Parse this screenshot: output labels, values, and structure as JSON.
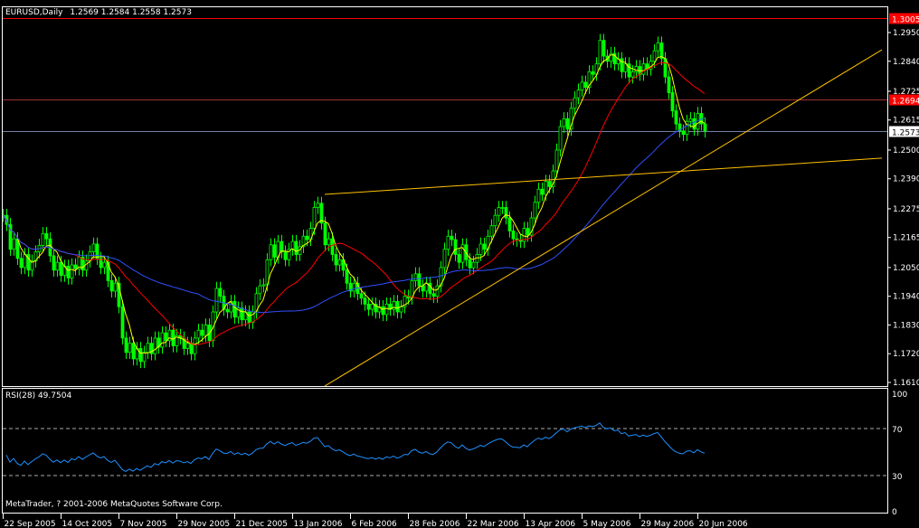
{
  "header": {
    "symbol_timeframe": "EURUSD,Daily",
    "ohlc": "1.2569 1.2584 1.2558 1.2573"
  },
  "copyright": "MetaTrader, ? 2001-2006 MetaQuotes Software Corp.",
  "indicator_label": "RSI(28) 49.7504",
  "colors": {
    "background": "#000000",
    "candles": "#00ff00",
    "ma_fast": "#ffff00",
    "ma_mid": "#ff0000",
    "ma_slow": "#3050ff",
    "rsi": "#1e90ff",
    "trendline": "#ffc000",
    "axis": "#ffffff"
  },
  "chart_data": {
    "type": "candlestick",
    "symbol": "EURUSD",
    "timeframe": "Daily",
    "start_date": "2005-09-22",
    "closes": [
      1.225,
      1.2215,
      1.212,
      1.216,
      1.2085,
      1.205,
      1.21,
      1.204,
      1.2075,
      1.211,
      1.2135,
      1.218,
      1.216,
      1.2095,
      1.204,
      1.207,
      1.202,
      1.2055,
      1.201,
      1.206,
      1.2045,
      1.209,
      1.204,
      1.2075,
      1.211,
      1.214,
      1.2085,
      1.205,
      1.207,
      1.2,
      1.196,
      1.199,
      1.19,
      1.178,
      1.1725,
      1.176,
      1.17,
      1.174,
      1.169,
      1.1725,
      1.176,
      1.172,
      1.178,
      1.1745,
      1.18,
      1.177,
      1.181,
      1.175,
      1.179,
      1.178,
      1.174,
      1.176,
      1.172,
      1.178,
      1.181,
      1.179,
      1.183,
      1.177,
      1.188,
      1.197,
      1.194,
      1.189,
      1.188,
      1.192,
      1.186,
      1.1895,
      1.185,
      1.188,
      1.184,
      1.188,
      1.195,
      1.198,
      1.1984,
      1.208,
      1.2137,
      1.209,
      1.215,
      1.211,
      1.208,
      1.212,
      1.215,
      1.21,
      1.213,
      1.217,
      1.2157,
      1.22,
      1.228,
      1.2296,
      1.222,
      1.2137,
      1.216,
      1.21,
      1.206,
      1.208,
      1.204,
      1.199,
      1.196,
      1.199,
      1.195,
      1.1933,
      1.191,
      1.189,
      1.191,
      1.188,
      1.19,
      1.187,
      1.191,
      1.189,
      1.192,
      1.188,
      1.19,
      1.194,
      1.1933,
      1.2,
      1.2026,
      1.198,
      1.196,
      1.199,
      1.195,
      1.194,
      1.198,
      1.205,
      1.212,
      1.217,
      1.2157,
      1.21,
      1.207,
      1.2137,
      1.208,
      1.2049,
      1.207,
      1.21,
      1.214,
      1.212,
      1.217,
      1.221,
      1.225,
      1.228,
      1.228,
      1.224,
      1.219,
      1.216,
      1.2155,
      1.215,
      1.22,
      1.2174,
      1.224,
      1.23,
      1.235,
      1.233,
      1.238,
      1.236,
      1.242,
      1.25,
      1.259,
      1.262,
      1.258,
      1.266,
      1.27,
      1.273,
      1.276,
      1.274,
      1.28,
      1.279,
      1.283,
      1.292,
      1.286,
      1.284,
      1.287,
      1.283,
      1.285,
      1.28,
      1.283,
      1.278,
      1.28,
      1.282,
      1.279,
      1.283,
      1.281,
      1.284,
      1.288,
      1.291,
      1.285,
      1.278,
      1.272,
      1.265,
      1.26,
      1.2573,
      1.256,
      1.261,
      1.262,
      1.258,
      1.264,
      1.26,
      1.2573
    ],
    "moving_averages": [
      {
        "period": 5,
        "color": "#ffff00"
      },
      {
        "period": 21,
        "color": "#ff0000"
      },
      {
        "period": 55,
        "color": "#3050ff"
      }
    ],
    "price_axis": {
      "ticks": [
        "1.2950",
        "1.2840",
        "1.2725",
        "1.2615",
        "1.2500",
        "1.2390",
        "1.2275",
        "1.2165",
        "1.2050",
        "1.1940",
        "1.1830",
        "1.1720",
        "1.1610"
      ],
      "range": [
        1.1596,
        1.305
      ]
    },
    "date_axis": {
      "ticks": [
        "22 Sep 2005",
        "14 Oct 2005",
        "7 Nov 2005",
        "29 Nov 2005",
        "21 Dec 2005",
        "13 Jan 2006",
        "6 Feb 2006",
        "28 Feb 2006",
        "22 Mar 2006",
        "13 Apr 2006",
        "5 May 2006",
        "29 May 2006",
        "20 Jun 2006"
      ]
    },
    "horizontal_lines": [
      {
        "price": "1.3005",
        "color": "#ff0000",
        "label_bg": "#ff0000"
      },
      {
        "price": "1.2694",
        "color": "#a03030",
        "label_bg": "#ff0000"
      },
      {
        "price": "1.2573",
        "color": "#7080a0",
        "label_bg": "#ffffff"
      }
    ],
    "trendlines": [
      {
        "start": {
          "date": "2006-01-25",
          "price": 1.233
        },
        "end": {
          "date": "2006-08-29",
          "price": 1.2469
        }
      },
      {
        "start": {
          "date": "2006-01-25",
          "price": 1.1596
        },
        "end": {
          "date": "2006-08-29",
          "price": 1.2884
        }
      }
    ],
    "rsi": {
      "period": 28,
      "last": 49.7504,
      "levels": [
        70,
        30
      ],
      "axis_ticks": [
        "100",
        "70",
        "30",
        "0"
      ]
    }
  }
}
